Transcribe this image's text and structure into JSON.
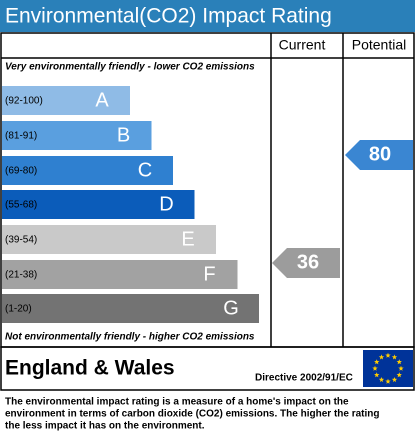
{
  "header": {
    "title": "Environmental(CO2) Impact Rating"
  },
  "columns": [
    "Current",
    "Potential"
  ],
  "top_note": "Very environmentally friendly - lower CO2 emissions",
  "bottom_note": "Not environmentally friendly - higher CO2 emissions",
  "bands": [
    {
      "range": "(92-100)",
      "letter": "A",
      "color": "#8fbbe6"
    },
    {
      "range": "(81-91)",
      "letter": "B",
      "color": "#5a9fdf"
    },
    {
      "range": "(69-80)",
      "letter": "C",
      "color": "#2f80d0"
    },
    {
      "range": "(55-68)",
      "letter": "D",
      "color": "#0b5cba"
    },
    {
      "range": "(39-54)",
      "letter": "E",
      "color": "#c9c9c9"
    },
    {
      "range": "(21-38)",
      "letter": "F",
      "color": "#a2a2a2"
    },
    {
      "range": "(1-20)",
      "letter": "G",
      "color": "#737373"
    }
  ],
  "current": {
    "label": "36",
    "color": "#9c9c9c"
  },
  "potential": {
    "label": "80",
    "color": "#3a86d2"
  },
  "region": "England & Wales",
  "directive": "Directive 2002/91/EC",
  "description": [
    "The environmental impact rating is a measure of a home's impact on the",
    "environment in terms of carbon dioxide (CO2) emissions. The higher the rating",
    "the less impact it has on the environment."
  ]
}
